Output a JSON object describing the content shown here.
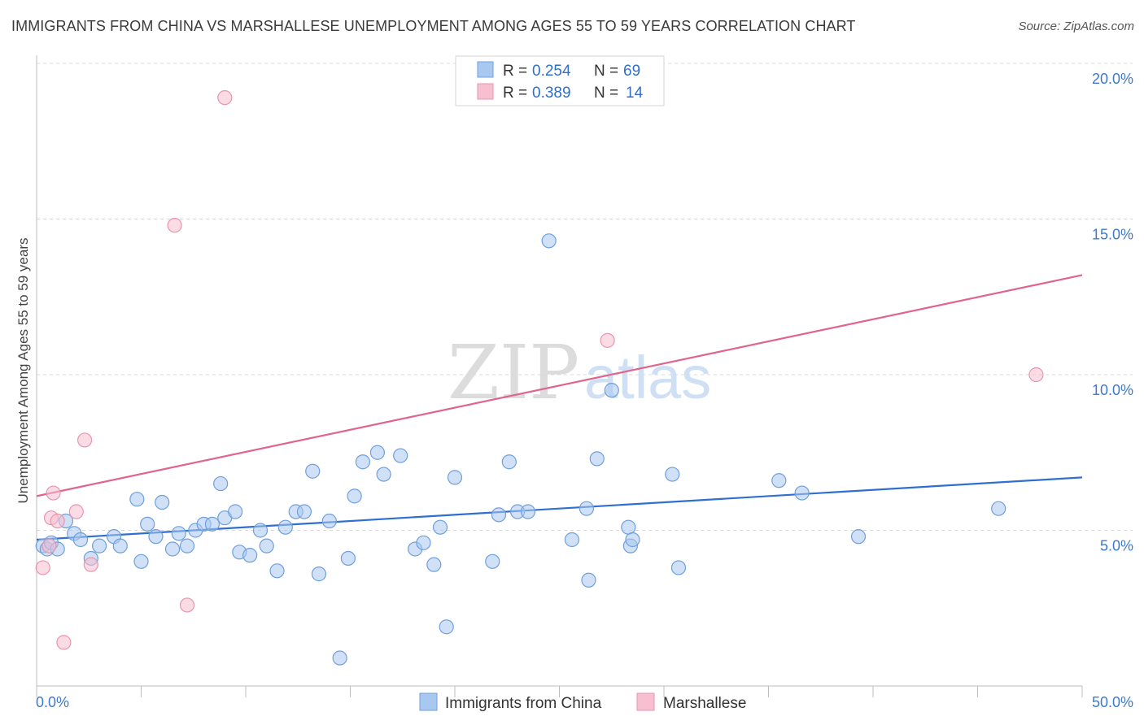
{
  "header": {
    "title": "IMMIGRANTS FROM CHINA VS MARSHALLESE UNEMPLOYMENT AMONG AGES 55 TO 59 YEARS CORRELATION CHART",
    "source": "Source: ZipAtlas.com"
  },
  "watermark": {
    "zip": "ZIP",
    "atlas": "atlas"
  },
  "legend": {
    "rows": [
      {
        "r_label": "R =",
        "r_value": "0.254",
        "n_label": "N =",
        "n_value": "69"
      },
      {
        "r_label": "R =",
        "r_value": "0.389",
        "n_label": "N =",
        "n_value": "14"
      }
    ]
  },
  "bottom_legend": {
    "series1": "Immigrants from China",
    "series2": "Marshallese"
  },
  "colors": {
    "china_fill": "#a9c8f0",
    "china_stroke": "#6f9fdc",
    "china_line": "#2f6fd0",
    "marsh_fill": "#f7bfd0",
    "marsh_stroke": "#e596b0",
    "marsh_line": "#e0648c",
    "tick_text": "#3f79c8",
    "grid": "#d8d8d8"
  },
  "chart_data": {
    "type": "scatter",
    "title": "IMMIGRANTS FROM CHINA VS MARSHALLESE UNEMPLOYMENT AMONG AGES 55 TO 59 YEARS CORRELATION CHART",
    "xlabel": "",
    "ylabel": "Unemployment Among Ages 55 to 59 years",
    "xlim": [
      0,
      50
    ],
    "ylim": [
      0,
      20
    ],
    "x_tick_labels": [
      "0.0%",
      "50.0%"
    ],
    "y_tick_values": [
      5,
      10,
      15,
      20
    ],
    "y_tick_labels": [
      "5.0%",
      "10.0%",
      "15.0%",
      "20.0%"
    ],
    "series": [
      {
        "name": "Immigrants from China",
        "R": 0.254,
        "N": 69,
        "trend": {
          "x": [
            0,
            50
          ],
          "y": [
            4.7,
            6.7
          ]
        },
        "points": [
          [
            0.3,
            4.5
          ],
          [
            0.5,
            4.4
          ],
          [
            0.7,
            4.6
          ],
          [
            1.0,
            4.4
          ],
          [
            1.4,
            5.3
          ],
          [
            1.8,
            4.9
          ],
          [
            2.1,
            4.7
          ],
          [
            2.6,
            4.1
          ],
          [
            3.0,
            4.5
          ],
          [
            3.7,
            4.8
          ],
          [
            4.0,
            4.5
          ],
          [
            4.8,
            6.0
          ],
          [
            5.0,
            4.0
          ],
          [
            5.3,
            5.2
          ],
          [
            5.7,
            4.8
          ],
          [
            6.0,
            5.9
          ],
          [
            6.5,
            4.4
          ],
          [
            6.8,
            4.9
          ],
          [
            7.2,
            4.5
          ],
          [
            7.6,
            5.0
          ],
          [
            8.0,
            5.2
          ],
          [
            8.4,
            5.2
          ],
          [
            8.8,
            6.5
          ],
          [
            9.0,
            5.4
          ],
          [
            9.5,
            5.6
          ],
          [
            9.7,
            4.3
          ],
          [
            10.2,
            4.2
          ],
          [
            10.7,
            5.0
          ],
          [
            11.0,
            4.5
          ],
          [
            11.5,
            3.7
          ],
          [
            11.9,
            5.1
          ],
          [
            12.4,
            5.6
          ],
          [
            12.8,
            5.6
          ],
          [
            13.2,
            6.9
          ],
          [
            13.5,
            3.6
          ],
          [
            14.0,
            5.3
          ],
          [
            14.5,
            0.9
          ],
          [
            14.9,
            4.1
          ],
          [
            15.2,
            6.1
          ],
          [
            15.6,
            7.2
          ],
          [
            16.3,
            7.5
          ],
          [
            16.6,
            6.8
          ],
          [
            17.4,
            7.4
          ],
          [
            18.1,
            4.4
          ],
          [
            18.5,
            4.6
          ],
          [
            19.0,
            3.9
          ],
          [
            19.3,
            5.1
          ],
          [
            19.6,
            1.9
          ],
          [
            20.0,
            6.7
          ],
          [
            21.8,
            4.0
          ],
          [
            22.1,
            5.5
          ],
          [
            22.6,
            7.2
          ],
          [
            23.0,
            5.6
          ],
          [
            23.5,
            5.6
          ],
          [
            24.5,
            14.3
          ],
          [
            25.6,
            4.7
          ],
          [
            26.3,
            5.7
          ],
          [
            26.4,
            3.4
          ],
          [
            26.8,
            7.3
          ],
          [
            27.5,
            9.5
          ],
          [
            28.3,
            5.1
          ],
          [
            28.4,
            4.5
          ],
          [
            28.5,
            4.7
          ],
          [
            30.4,
            6.8
          ],
          [
            30.7,
            3.8
          ],
          [
            35.5,
            6.6
          ],
          [
            36.6,
            6.2
          ],
          [
            39.3,
            4.8
          ],
          [
            46.0,
            5.7
          ]
        ]
      },
      {
        "name": "Marshallese",
        "R": 0.389,
        "N": 14,
        "trend": {
          "x": [
            0,
            50
          ],
          "y": [
            6.1,
            13.2
          ]
        },
        "points": [
          [
            0.3,
            3.8
          ],
          [
            0.6,
            4.5
          ],
          [
            0.7,
            5.4
          ],
          [
            0.8,
            6.2
          ],
          [
            1.0,
            5.3
          ],
          [
            1.3,
            1.4
          ],
          [
            1.9,
            5.6
          ],
          [
            2.3,
            7.9
          ],
          [
            2.6,
            3.9
          ],
          [
            6.6,
            14.8
          ],
          [
            7.2,
            2.6
          ],
          [
            9.0,
            18.9
          ],
          [
            27.3,
            11.1
          ],
          [
            47.8,
            10.0
          ]
        ]
      }
    ]
  }
}
